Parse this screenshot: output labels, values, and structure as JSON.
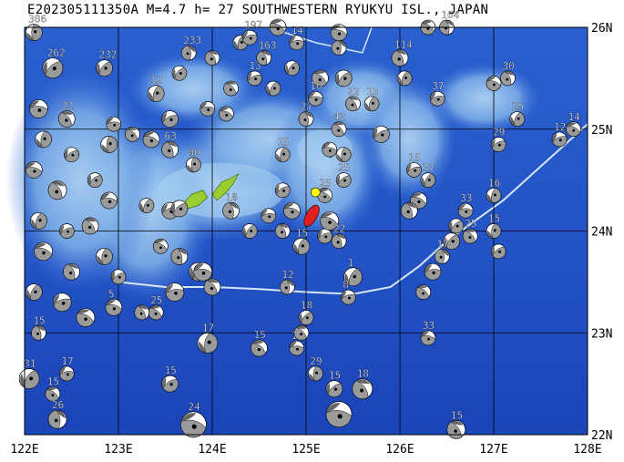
{
  "title": "E202305111350A  M=4.7  h=  27  SOUTHWESTERN RYUKYU ISL., JAPAN",
  "latitude_labels": [
    "26N",
    "25N",
    "24N",
    "23N",
    "22N"
  ],
  "longitude_labels": [
    "122E",
    "123E",
    "124E",
    "125E",
    "126E",
    "127E",
    "128E"
  ],
  "bounds": {
    "lon_min": 122,
    "lon_max": 128,
    "lat_min": 22,
    "lat_max": 26
  },
  "colors": {
    "deep_ocean": "#1f4fc4",
    "mid_ocean": "#3d74d6",
    "shallow_ocean": "#7fb1e8",
    "shelf": "#a9d0f2",
    "land": "#9acd32",
    "trench_line": "#d8e6f5",
    "mechanism_fill": "#9a9a9a",
    "main_event": "#e02020",
    "epicenter": "#ffff00"
  },
  "main_event": {
    "lon": 125.02,
    "lat": 24.15,
    "depth_km": 27,
    "magnitude": 4.7
  },
  "epicenter": {
    "lon": 125.1,
    "lat": 24.38
  },
  "islands": [
    {
      "name": "",
      "points": [
        [
          123.7,
          24.28
        ],
        [
          123.78,
          24.36
        ],
        [
          123.9,
          24.4
        ],
        [
          123.95,
          24.33
        ],
        [
          123.85,
          24.25
        ],
        [
          123.74,
          24.22
        ]
      ]
    },
    {
      "name": "",
      "points": [
        [
          124.0,
          24.36
        ],
        [
          124.1,
          24.48
        ],
        [
          124.2,
          24.52
        ],
        [
          124.28,
          24.56
        ],
        [
          124.22,
          24.46
        ],
        [
          124.15,
          24.38
        ],
        [
          124.05,
          24.3
        ]
      ]
    },
    {
      "name": "",
      "points": [
        [
          125.22,
          24.78
        ],
        [
          125.28,
          24.82
        ],
        [
          125.32,
          24.76
        ],
        [
          125.26,
          24.72
        ]
      ]
    }
  ],
  "trench": [
    [
      123.0,
      23.5
    ],
    [
      123.5,
      23.45
    ],
    [
      124.0,
      23.45
    ],
    [
      124.5,
      23.43
    ],
    [
      125.0,
      23.4
    ],
    [
      125.5,
      23.38
    ],
    [
      125.9,
      23.45
    ],
    [
      126.2,
      23.65
    ],
    [
      126.5,
      23.9
    ],
    [
      126.8,
      24.1
    ],
    [
      127.1,
      24.3
    ],
    [
      127.4,
      24.55
    ],
    [
      127.7,
      24.8
    ],
    [
      128.0,
      25.05
    ]
  ],
  "trench_north": [
    [
      124.6,
      26.0
    ],
    [
      125.1,
      25.85
    ],
    [
      125.6,
      25.75
    ],
    [
      125.7,
      26.0
    ]
  ],
  "events": [
    {
      "lon": 122.1,
      "lat": 25.95,
      "depth": "306",
      "size": 9
    },
    {
      "lon": 122.3,
      "lat": 25.6,
      "depth": "262",
      "size": 11
    },
    {
      "lon": 122.15,
      "lat": 25.2,
      "depth": "",
      "size": 10
    },
    {
      "lon": 122.45,
      "lat": 25.1,
      "depth": "22",
      "size": 9
    },
    {
      "lon": 122.2,
      "lat": 24.9,
      "depth": "",
      "size": 9
    },
    {
      "lon": 122.5,
      "lat": 24.75,
      "depth": "",
      "size": 8
    },
    {
      "lon": 122.1,
      "lat": 24.6,
      "depth": "",
      "size": 9
    },
    {
      "lon": 122.35,
      "lat": 24.4,
      "depth": "",
      "size": 10
    },
    {
      "lon": 122.15,
      "lat": 24.1,
      "depth": "",
      "size": 9
    },
    {
      "lon": 122.45,
      "lat": 24.0,
      "depth": "",
      "size": 8
    },
    {
      "lon": 122.2,
      "lat": 23.8,
      "depth": "",
      "size": 10
    },
    {
      "lon": 122.5,
      "lat": 23.6,
      "depth": "",
      "size": 9
    },
    {
      "lon": 122.1,
      "lat": 23.4,
      "depth": "",
      "size": 9
    },
    {
      "lon": 122.4,
      "lat": 23.3,
      "depth": "",
      "size": 10
    },
    {
      "lon": 122.65,
      "lat": 23.15,
      "depth": "",
      "size": 10
    },
    {
      "lon": 122.15,
      "lat": 23.0,
      "depth": "15",
      "size": 8
    },
    {
      "lon": 122.05,
      "lat": 22.55,
      "depth": "31",
      "size": 11
    },
    {
      "lon": 122.45,
      "lat": 22.6,
      "depth": "17",
      "size": 8
    },
    {
      "lon": 122.3,
      "lat": 22.4,
      "depth": "15",
      "size": 8
    },
    {
      "lon": 122.35,
      "lat": 22.15,
      "depth": "26",
      "size": 10
    },
    {
      "lon": 122.85,
      "lat": 25.6,
      "depth": "232",
      "size": 9
    },
    {
      "lon": 122.95,
      "lat": 25.05,
      "depth": "",
      "size": 8
    },
    {
      "lon": 123.15,
      "lat": 24.95,
      "depth": "",
      "size": 8
    },
    {
      "lon": 122.9,
      "lat": 24.85,
      "depth": "",
      "size": 9
    },
    {
      "lon": 122.75,
      "lat": 24.5,
      "depth": "",
      "size": 8
    },
    {
      "lon": 122.9,
      "lat": 24.3,
      "depth": "",
      "size": 9
    },
    {
      "lon": 122.7,
      "lat": 24.05,
      "depth": "",
      "size": 9
    },
    {
      "lon": 122.85,
      "lat": 23.75,
      "depth": "",
      "size": 9
    },
    {
      "lon": 123.0,
      "lat": 23.55,
      "depth": "",
      "size": 8
    },
    {
      "lon": 122.95,
      "lat": 23.25,
      "depth": "5",
      "size": 9
    },
    {
      "lon": 123.25,
      "lat": 23.2,
      "depth": "",
      "size": 8
    },
    {
      "lon": 123.4,
      "lat": 25.35,
      "depth": "12",
      "size": 9
    },
    {
      "lon": 123.55,
      "lat": 25.1,
      "depth": "",
      "size": 9
    },
    {
      "lon": 123.35,
      "lat": 24.9,
      "depth": "",
      "size": 9
    },
    {
      "lon": 123.55,
      "lat": 24.8,
      "depth": "63",
      "size": 9
    },
    {
      "lon": 123.3,
      "lat": 24.25,
      "depth": "",
      "size": 8
    },
    {
      "lon": 123.55,
      "lat": 24.2,
      "depth": "",
      "size": 9
    },
    {
      "lon": 123.45,
      "lat": 23.85,
      "depth": "",
      "size": 8
    },
    {
      "lon": 123.65,
      "lat": 23.75,
      "depth": "",
      "size": 9
    },
    {
      "lon": 123.85,
      "lat": 23.6,
      "depth": "",
      "size": 10
    },
    {
      "lon": 123.6,
      "lat": 23.4,
      "depth": "",
      "size": 10
    },
    {
      "lon": 123.4,
      "lat": 23.2,
      "depth": "25",
      "size": 8
    },
    {
      "lon": 123.75,
      "lat": 25.75,
      "depth": "233",
      "size": 8
    },
    {
      "lon": 123.65,
      "lat": 25.55,
      "depth": "",
      "size": 8
    },
    {
      "lon": 123.95,
      "lat": 25.2,
      "depth": "",
      "size": 8
    },
    {
      "lon": 124.2,
      "lat": 25.4,
      "depth": "",
      "size": 8
    },
    {
      "lon": 123.8,
      "lat": 24.65,
      "depth": "80",
      "size": 8
    },
    {
      "lon": 123.65,
      "lat": 24.22,
      "depth": "",
      "size": 9
    },
    {
      "lon": 123.9,
      "lat": 23.6,
      "depth": "",
      "size": 10
    },
    {
      "lon": 124.0,
      "lat": 23.45,
      "depth": "",
      "size": 9
    },
    {
      "lon": 123.95,
      "lat": 22.9,
      "depth": "17",
      "size": 11
    },
    {
      "lon": 123.55,
      "lat": 22.5,
      "depth": "15",
      "size": 9
    },
    {
      "lon": 123.8,
      "lat": 22.1,
      "depth": "24",
      "size": 14
    },
    {
      "lon": 124.0,
      "lat": 25.7,
      "depth": "",
      "size": 8
    },
    {
      "lon": 124.3,
      "lat": 25.85,
      "depth": "",
      "size": 8
    },
    {
      "lon": 124.45,
      "lat": 25.5,
      "depth": "13",
      "size": 8
    },
    {
      "lon": 124.15,
      "lat": 25.15,
      "depth": "",
      "size": 8
    },
    {
      "lon": 124.55,
      "lat": 25.7,
      "depth": "163",
      "size": 8
    },
    {
      "lon": 124.65,
      "lat": 25.4,
      "depth": "",
      "size": 8
    },
    {
      "lon": 124.4,
      "lat": 25.9,
      "depth": "197",
      "size": 8
    },
    {
      "lon": 124.7,
      "lat": 26.0,
      "depth": "",
      "size": 9
    },
    {
      "lon": 124.2,
      "lat": 24.2,
      "depth": "18",
      "size": 9
    },
    {
      "lon": 124.4,
      "lat": 24.0,
      "depth": "",
      "size": 8
    },
    {
      "lon": 124.6,
      "lat": 24.15,
      "depth": "",
      "size": 8
    },
    {
      "lon": 124.5,
      "lat": 22.85,
      "depth": "15",
      "size": 9
    },
    {
      "lon": 124.8,
      "lat": 23.45,
      "depth": "12",
      "size": 8
    },
    {
      "lon": 125.0,
      "lat": 23.15,
      "depth": "18",
      "size": 8
    },
    {
      "lon": 124.9,
      "lat": 22.85,
      "depth": "17",
      "size": 8
    },
    {
      "lon": 124.95,
      "lat": 23.0,
      "depth": "",
      "size": 8
    },
    {
      "lon": 125.1,
      "lat": 22.6,
      "depth": "29",
      "size": 8
    },
    {
      "lon": 125.3,
      "lat": 22.45,
      "depth": "15",
      "size": 9
    },
    {
      "lon": 125.35,
      "lat": 22.2,
      "depth": "",
      "size": 14
    },
    {
      "lon": 125.6,
      "lat": 22.45,
      "depth": "18",
      "size": 11
    },
    {
      "lon": 124.75,
      "lat": 24.75,
      "depth": "15",
      "size": 8
    },
    {
      "lon": 124.75,
      "lat": 24.4,
      "depth": "",
      "size": 8
    },
    {
      "lon": 124.85,
      "lat": 24.2,
      "depth": "",
      "size": 9
    },
    {
      "lon": 124.75,
      "lat": 24.0,
      "depth": "",
      "size": 8
    },
    {
      "lon": 124.95,
      "lat": 23.85,
      "depth": "15",
      "size": 9
    },
    {
      "lon": 125.2,
      "lat": 23.95,
      "depth": "15",
      "size": 8
    },
    {
      "lon": 125.25,
      "lat": 24.1,
      "depth": "",
      "size": 10
    },
    {
      "lon": 125.35,
      "lat": 23.9,
      "depth": "22",
      "size": 8
    },
    {
      "lon": 125.5,
      "lat": 23.55,
      "depth": "1",
      "size": 10
    },
    {
      "lon": 125.45,
      "lat": 23.35,
      "depth": "8",
      "size": 8
    },
    {
      "lon": 125.2,
      "lat": 24.35,
      "depth": "25",
      "size": 8
    },
    {
      "lon": 125.0,
      "lat": 25.1,
      "depth": "27",
      "size": 8
    },
    {
      "lon": 124.85,
      "lat": 25.6,
      "depth": "",
      "size": 8
    },
    {
      "lon": 124.9,
      "lat": 25.85,
      "depth": "14",
      "size": 8
    },
    {
      "lon": 125.15,
      "lat": 25.5,
      "depth": "",
      "size": 9
    },
    {
      "lon": 125.35,
      "lat": 25.8,
      "depth": "",
      "size": 8
    },
    {
      "lon": 125.4,
      "lat": 25.5,
      "depth": "",
      "size": 9
    },
    {
      "lon": 125.1,
      "lat": 25.3,
      "depth": "10",
      "size": 8
    },
    {
      "lon": 125.35,
      "lat": 25.0,
      "depth": "42",
      "size": 8
    },
    {
      "lon": 125.4,
      "lat": 24.75,
      "depth": "",
      "size": 8
    },
    {
      "lon": 125.4,
      "lat": 24.5,
      "depth": "25",
      "size": 8
    },
    {
      "lon": 125.25,
      "lat": 24.8,
      "depth": "",
      "size": 8
    },
    {
      "lon": 125.5,
      "lat": 25.25,
      "depth": "22",
      "size": 8
    },
    {
      "lon": 125.7,
      "lat": 25.25,
      "depth": "13",
      "size": 8
    },
    {
      "lon": 125.8,
      "lat": 24.95,
      "depth": "",
      "size": 9
    },
    {
      "lon": 125.35,
      "lat": 25.95,
      "depth": "",
      "size": 9
    },
    {
      "lon": 126.0,
      "lat": 25.7,
      "depth": "114",
      "size": 9
    },
    {
      "lon": 126.05,
      "lat": 25.5,
      "depth": "",
      "size": 8
    },
    {
      "lon": 126.15,
      "lat": 24.6,
      "depth": "15",
      "size": 8
    },
    {
      "lon": 126.2,
      "lat": 24.3,
      "depth": "",
      "size": 9
    },
    {
      "lon": 126.1,
      "lat": 24.2,
      "depth": "",
      "size": 9
    },
    {
      "lon": 126.3,
      "lat": 24.5,
      "depth": "37",
      "size": 8
    },
    {
      "lon": 126.4,
      "lat": 25.3,
      "depth": "37",
      "size": 8
    },
    {
      "lon": 126.3,
      "lat": 26.0,
      "depth": "",
      "size": 8
    },
    {
      "lon": 126.5,
      "lat": 26.0,
      "depth": "164",
      "size": 8
    },
    {
      "lon": 126.55,
      "lat": 23.9,
      "depth": "",
      "size": 9
    },
    {
      "lon": 126.35,
      "lat": 23.6,
      "depth": "",
      "size": 9
    },
    {
      "lon": 126.25,
      "lat": 23.4,
      "depth": "",
      "size": 8
    },
    {
      "lon": 126.45,
      "lat": 23.75,
      "depth": "17",
      "size": 8
    },
    {
      "lon": 126.6,
      "lat": 24.05,
      "depth": "",
      "size": 8
    },
    {
      "lon": 126.7,
      "lat": 24.2,
      "depth": "33",
      "size": 8
    },
    {
      "lon": 126.75,
      "lat": 23.95,
      "depth": "25",
      "size": 8
    },
    {
      "lon": 127.0,
      "lat": 24.0,
      "depth": "15",
      "size": 8
    },
    {
      "lon": 127.05,
      "lat": 23.8,
      "depth": "",
      "size": 8
    },
    {
      "lon": 126.3,
      "lat": 22.95,
      "depth": "33",
      "size": 8
    },
    {
      "lon": 126.6,
      "lat": 22.05,
      "depth": "15",
      "size": 10
    },
    {
      "lon": 127.0,
      "lat": 24.35,
      "depth": "16",
      "size": 8
    },
    {
      "lon": 127.05,
      "lat": 24.85,
      "depth": "29",
      "size": 8
    },
    {
      "lon": 127.0,
      "lat": 25.45,
      "depth": "",
      "size": 8
    },
    {
      "lon": 127.15,
      "lat": 25.5,
      "depth": "30",
      "size": 8
    },
    {
      "lon": 127.25,
      "lat": 25.1,
      "depth": "25",
      "size": 8
    },
    {
      "lon": 127.7,
      "lat": 24.9,
      "depth": "12",
      "size": 8
    },
    {
      "lon": 127.85,
      "lat": 25.0,
      "depth": "14",
      "size": 8
    }
  ]
}
